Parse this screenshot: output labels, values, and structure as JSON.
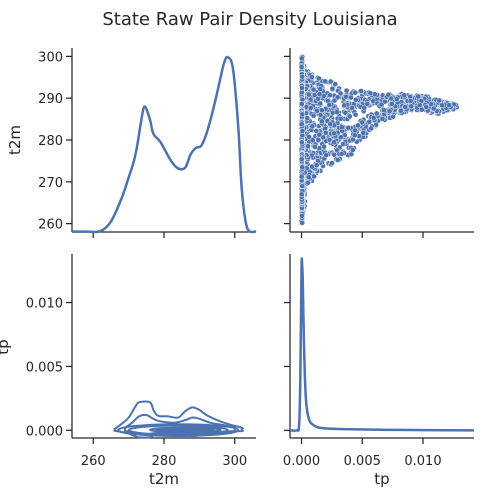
{
  "chart_data": {
    "type": "scatter",
    "title": "State Raw Pair Density Louisiana",
    "variables": [
      "t2m",
      "tp"
    ],
    "axes": {
      "t2m": {
        "label": "t2m",
        "range": [
          254,
          306
        ],
        "ticks": [
          "260",
          "280",
          "300"
        ],
        "tick_values": [
          260,
          280,
          300
        ]
      },
      "t2m_y": {
        "label": "t2m",
        "range": [
          258,
          302
        ],
        "ticks": [
          "260",
          "270",
          "280",
          "290",
          "300"
        ],
        "tick_values": [
          260,
          270,
          280,
          290,
          300
        ]
      },
      "tp": {
        "label": "tp",
        "range": [
          -0.00095,
          0.0142
        ],
        "ticks": [
          "0.000",
          "0.005",
          "0.010"
        ],
        "tick_values": [
          0,
          0.005,
          0.01
        ]
      },
      "tp_y": {
        "label": "tp",
        "range": [
          -0.0006,
          0.0138
        ],
        "ticks": [
          "0.000",
          "0.005",
          "0.010"
        ],
        "tick_values": [
          0,
          0.005,
          0.01
        ]
      }
    },
    "t2m_density": {
      "x": [
        254,
        258,
        262,
        265,
        268,
        270,
        271.5,
        272.5,
        273.5,
        274.5,
        276,
        277,
        279,
        282,
        284,
        286,
        287.5,
        289,
        290.5,
        292,
        293.5,
        294.8,
        296,
        297,
        298,
        299.5,
        301,
        302,
        303.5,
        306
      ],
      "y": [
        258.1,
        258.1,
        258.2,
        260.5,
        266,
        271,
        275,
        279,
        284.3,
        288,
        285,
        281.5,
        279.5,
        275,
        273.2,
        273.4,
        276.5,
        278.1,
        278.6,
        281.5,
        286,
        290.5,
        295,
        298.5,
        299.8,
        297,
        283,
        268,
        259,
        258.1
      ]
    },
    "tp_density": {
      "x": [
        -0.00095,
        -0.0004,
        -0.0002,
        -0.0001,
        0.0,
        5e-05,
        0.0001,
        0.0002,
        0.00035,
        0.0006,
        0.001,
        0.0015,
        0.0025,
        0.004,
        0.007,
        0.01,
        0.0142
      ],
      "y": [
        0.0,
        0.0,
        0.0004,
        0.0041,
        0.0127,
        0.0129,
        0.0118,
        0.0068,
        0.0026,
        0.0009,
        0.0004,
        0.0002,
        0.00012,
        8e-05,
        4e-05,
        2e-05,
        0.0
      ]
    },
    "contours": [
      {
        "cx": 284,
        "cy": 2e-05,
        "rx": 14,
        "ry": 0.00036
      },
      {
        "cx": 284,
        "cy": 2e-05,
        "rx": 17,
        "ry": 0.00046
      },
      {
        "cx": 286,
        "cy": 4e-05,
        "rx": 10,
        "ry": 0.00018
      },
      {
        "cx": 286,
        "cy": 4e-05,
        "rx": 8,
        "ry": 0.0001
      },
      {
        "cx": 286,
        "cy": 4e-05,
        "rx": 6,
        "ry": 5e-05
      }
    ],
    "contour_lobes": [
      {
        "x": [
          266,
          268,
          270,
          272,
          273,
          276,
          277,
          278,
          279,
          281,
          284,
          286,
          288,
          290,
          292,
          295,
          298,
          302,
          302
        ],
        "y": [
          0.0001,
          0.0005,
          0.001,
          0.0019,
          0.0022,
          0.0022,
          0.0016,
          0.0012,
          0.0011,
          0.0011,
          0.001,
          0.0015,
          0.0018,
          0.0016,
          0.0012,
          0.0008,
          0.0005,
          0.0002,
          0.0001
        ]
      },
      {
        "x": [
          269,
          271,
          273,
          275,
          277,
          279,
          283,
          286,
          288,
          290,
          293,
          297,
          300
        ],
        "y": [
          0.0002,
          0.0006,
          0.0011,
          0.0012,
          0.0009,
          0.0007,
          0.0006,
          0.0008,
          0.001,
          0.0009,
          0.0006,
          0.0004,
          0.0002
        ]
      }
    ],
    "scatter_envelope": {
      "tp": [
        0.0,
        0.0005,
        0.001,
        0.0015,
        0.002,
        0.003,
        0.004,
        0.005,
        0.006,
        0.007,
        0.008,
        0.009,
        0.01,
        0.011,
        0.012,
        0.0128
      ],
      "t2m_low": [
        260,
        268,
        271,
        272,
        273.5,
        275,
        276,
        280,
        283,
        285,
        286,
        287,
        287,
        286,
        287,
        287.5
      ],
      "t2m_high": [
        299.5,
        296.5,
        296,
        295.5,
        295,
        293,
        292,
        292,
        291,
        291,
        291,
        291,
        291,
        290,
        289,
        288.5
      ]
    },
    "grid": false,
    "legend": "none"
  }
}
